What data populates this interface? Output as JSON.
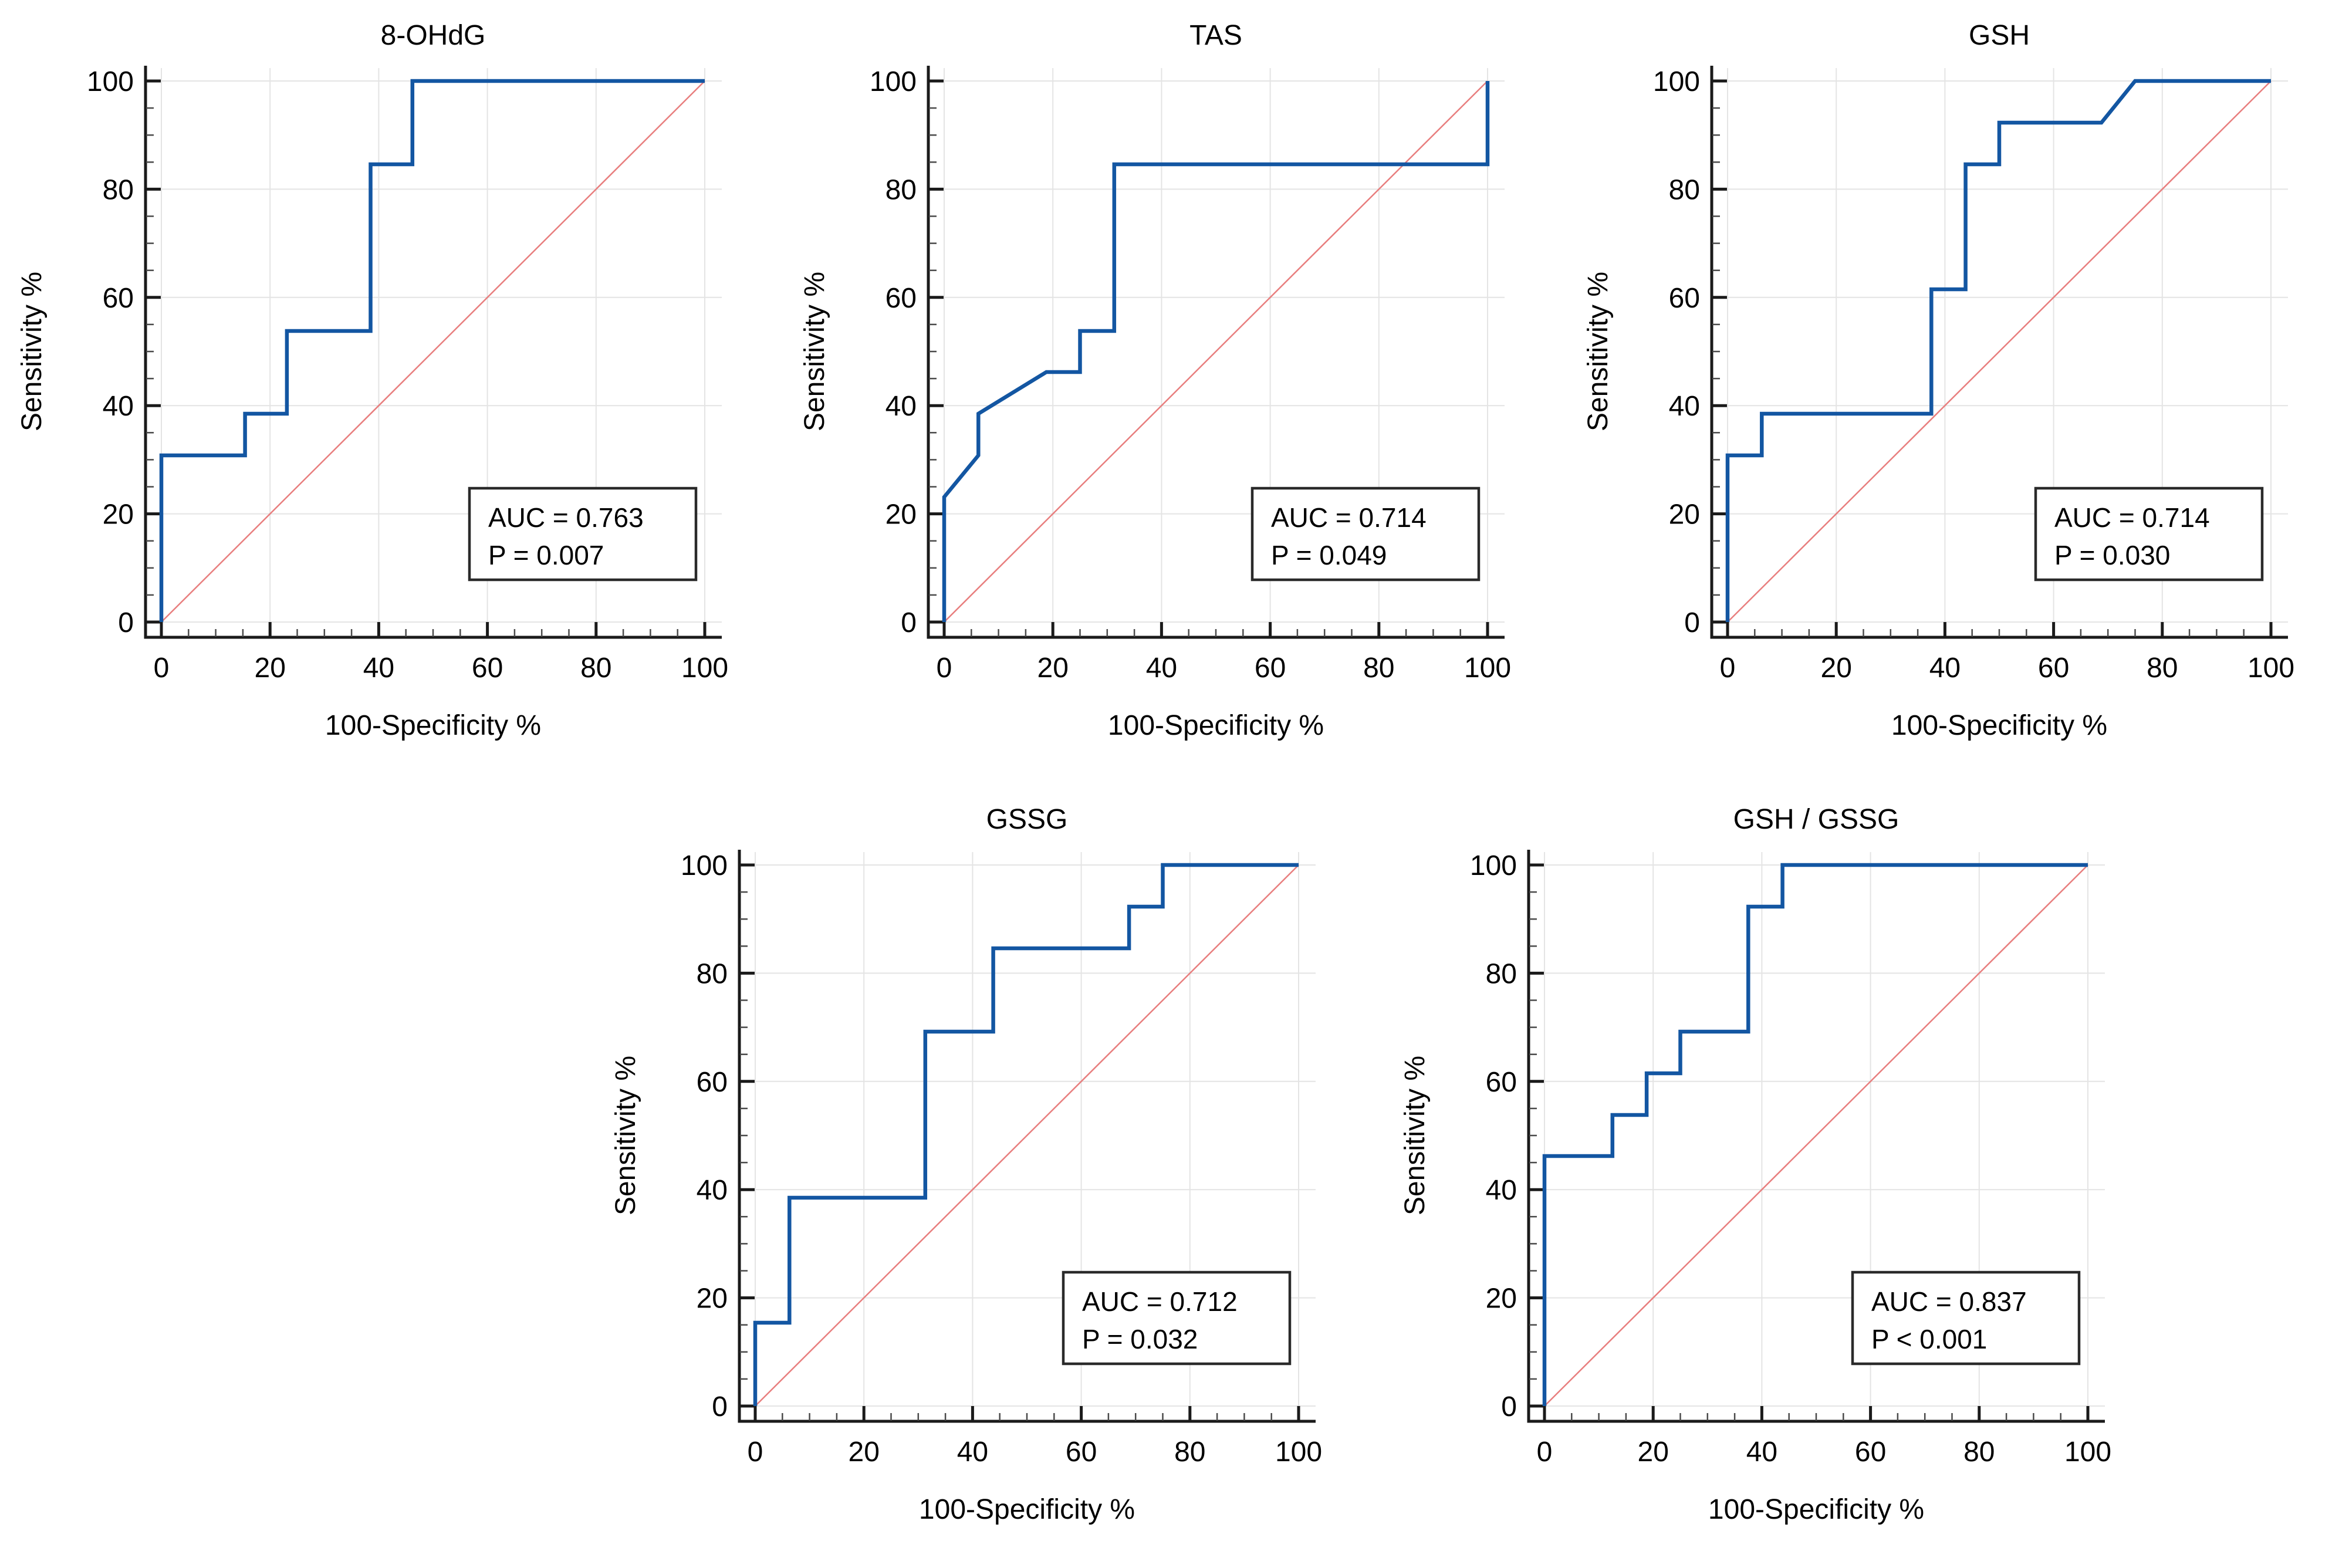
{
  "figure": {
    "xlabel": "100-Specificity %",
    "ylabel": "Sensitivity %",
    "colors": {
      "roc_curve": "#1356a2",
      "chance_diagonal": "#e87e7e",
      "grid": "#e4e4e4",
      "axis": "#1a1a1a",
      "minor_tick": "#4a4a4a",
      "text": "#000000",
      "annotation_border": "#2a2a2a",
      "background": "#ffffff"
    }
  },
  "chart_data": [
    {
      "type": "line",
      "title": "8-OHdG",
      "xlabel": "100-Specificity %",
      "ylabel": "Sensitivity %",
      "xlim": [
        0,
        100
      ],
      "ylim": [
        0,
        100
      ],
      "x_ticks": [
        0,
        20,
        40,
        60,
        80,
        100
      ],
      "y_ticks": [
        0,
        20,
        40,
        60,
        80,
        100
      ],
      "minor_tick_step": 5,
      "grid": true,
      "annotation": {
        "auc": 0.763,
        "p_value": "0.007",
        "lines": [
          "AUC = 0.763",
          "P = 0.007"
        ]
      },
      "series": [
        {
          "name": "roc-curve",
          "points": [
            [
              0,
              0
            ],
            [
              0,
              30.8
            ],
            [
              15.4,
              30.8
            ],
            [
              15.4,
              38.5
            ],
            [
              23.1,
              38.5
            ],
            [
              23.1,
              53.8
            ],
            [
              38.5,
              53.8
            ],
            [
              38.5,
              84.6
            ],
            [
              46.2,
              84.6
            ],
            [
              46.2,
              100
            ],
            [
              100,
              100
            ]
          ]
        },
        {
          "name": "chance-diagonal",
          "points": [
            [
              0,
              0
            ],
            [
              100,
              100
            ]
          ]
        }
      ]
    },
    {
      "type": "line",
      "title": "TAS",
      "xlabel": "100-Specificity %",
      "ylabel": "Sensitivity %",
      "xlim": [
        0,
        100
      ],
      "ylim": [
        0,
        100
      ],
      "x_ticks": [
        0,
        20,
        40,
        60,
        80,
        100
      ],
      "y_ticks": [
        0,
        20,
        40,
        60,
        80,
        100
      ],
      "minor_tick_step": 5,
      "grid": true,
      "annotation": {
        "auc": 0.714,
        "p_value": "0.049",
        "lines": [
          "AUC = 0.714",
          "P = 0.049"
        ]
      },
      "series": [
        {
          "name": "roc-curve",
          "points": [
            [
              0,
              0
            ],
            [
              0,
              23.1
            ],
            [
              6.3,
              30.8
            ],
            [
              6.3,
              38.5
            ],
            [
              18.8,
              46.2
            ],
            [
              25,
              46.2
            ],
            [
              25,
              53.8
            ],
            [
              31.3,
              53.8
            ],
            [
              31.3,
              84.6
            ],
            [
              100,
              84.6
            ],
            [
              100,
              100
            ]
          ]
        },
        {
          "name": "chance-diagonal",
          "points": [
            [
              0,
              0
            ],
            [
              100,
              100
            ]
          ]
        }
      ]
    },
    {
      "type": "line",
      "title": "GSH",
      "xlabel": "100-Specificity %",
      "ylabel": "Sensitivity %",
      "xlim": [
        0,
        100
      ],
      "ylim": [
        0,
        100
      ],
      "x_ticks": [
        0,
        20,
        40,
        60,
        80,
        100
      ],
      "y_ticks": [
        0,
        20,
        40,
        60,
        80,
        100
      ],
      "minor_tick_step": 5,
      "grid": true,
      "annotation": {
        "auc": 0.714,
        "p_value": "0.030",
        "lines": [
          "AUC = 0.714",
          "P = 0.030"
        ]
      },
      "series": [
        {
          "name": "roc-curve",
          "points": [
            [
              0,
              0
            ],
            [
              0,
              30.8
            ],
            [
              6.3,
              30.8
            ],
            [
              6.3,
              38.5
            ],
            [
              37.5,
              38.5
            ],
            [
              37.5,
              61.5
            ],
            [
              43.8,
              61.5
            ],
            [
              43.8,
              84.6
            ],
            [
              50,
              84.6
            ],
            [
              50,
              92.3
            ],
            [
              68.8,
              92.3
            ],
            [
              75,
              100
            ],
            [
              100,
              100
            ]
          ]
        },
        {
          "name": "chance-diagonal",
          "points": [
            [
              0,
              0
            ],
            [
              100,
              100
            ]
          ]
        }
      ]
    },
    {
      "type": "line",
      "title": "GSSG",
      "xlabel": "100-Specificity %",
      "ylabel": "Sensitivity %",
      "xlim": [
        0,
        100
      ],
      "ylim": [
        0,
        100
      ],
      "x_ticks": [
        0,
        20,
        40,
        60,
        80,
        100
      ],
      "y_ticks": [
        0,
        20,
        40,
        60,
        80,
        100
      ],
      "minor_tick_step": 5,
      "grid": true,
      "annotation": {
        "auc": 0.712,
        "p_value": "0.032",
        "lines": [
          "AUC = 0.712",
          "P = 0.032"
        ]
      },
      "series": [
        {
          "name": "roc-curve",
          "points": [
            [
              0,
              0
            ],
            [
              0,
              15.4
            ],
            [
              6.3,
              15.4
            ],
            [
              6.3,
              38.5
            ],
            [
              31.3,
              38.5
            ],
            [
              31.3,
              69.2
            ],
            [
              43.8,
              69.2
            ],
            [
              43.8,
              84.6
            ],
            [
              68.8,
              84.6
            ],
            [
              68.8,
              92.3
            ],
            [
              75,
              92.3
            ],
            [
              75,
              100
            ],
            [
              100,
              100
            ]
          ]
        },
        {
          "name": "chance-diagonal",
          "points": [
            [
              0,
              0
            ],
            [
              100,
              100
            ]
          ]
        }
      ]
    },
    {
      "type": "line",
      "title": "GSH / GSSG",
      "xlabel": "100-Specificity %",
      "ylabel": "Sensitivity %",
      "xlim": [
        0,
        100
      ],
      "ylim": [
        0,
        100
      ],
      "x_ticks": [
        0,
        20,
        40,
        60,
        80,
        100
      ],
      "y_ticks": [
        0,
        20,
        40,
        60,
        80,
        100
      ],
      "minor_tick_step": 5,
      "grid": true,
      "annotation": {
        "auc": 0.837,
        "p_value": "< 0.001",
        "lines": [
          "AUC = 0.837",
          "P < 0.001"
        ]
      },
      "series": [
        {
          "name": "roc-curve",
          "points": [
            [
              0,
              0
            ],
            [
              0,
              46.2
            ],
            [
              12.5,
              46.2
            ],
            [
              12.5,
              53.8
            ],
            [
              18.8,
              53.8
            ],
            [
              18.8,
              61.5
            ],
            [
              25,
              61.5
            ],
            [
              25,
              69.2
            ],
            [
              37.5,
              69.2
            ],
            [
              37.5,
              92.3
            ],
            [
              43.8,
              92.3
            ],
            [
              43.8,
              100
            ],
            [
              100,
              100
            ]
          ]
        },
        {
          "name": "chance-diagonal",
          "points": [
            [
              0,
              0
            ],
            [
              100,
              100
            ]
          ]
        }
      ]
    }
  ]
}
